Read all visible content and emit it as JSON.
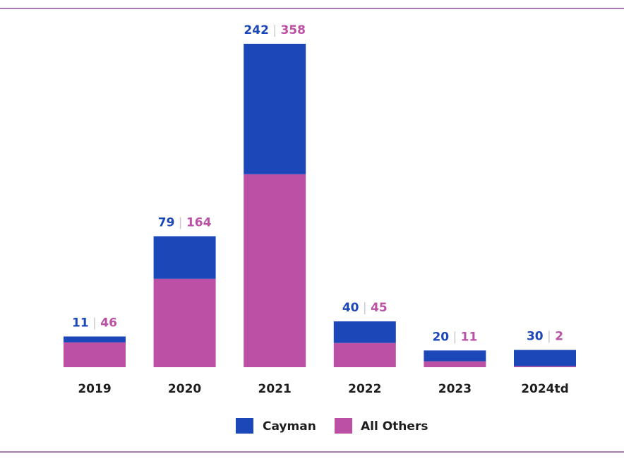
{
  "colors": {
    "cayman": "#1c47b8",
    "others": "#bb50a4",
    "separator": "#c9c9c9",
    "rule": "#a77bb5"
  },
  "chart_data": {
    "type": "bar",
    "stacked": true,
    "categories": [
      "2019",
      "2020",
      "2021",
      "2022",
      "2023",
      "2024td"
    ],
    "series": [
      {
        "name": "Cayman",
        "values": [
          11,
          79,
          242,
          40,
          20,
          30
        ]
      },
      {
        "name": "All Others",
        "values": [
          46,
          164,
          358,
          45,
          11,
          2
        ]
      }
    ],
    "separator": "|",
    "legend_position": "bottom",
    "grid": false,
    "title": "",
    "xlabel": "",
    "ylabel": ""
  }
}
